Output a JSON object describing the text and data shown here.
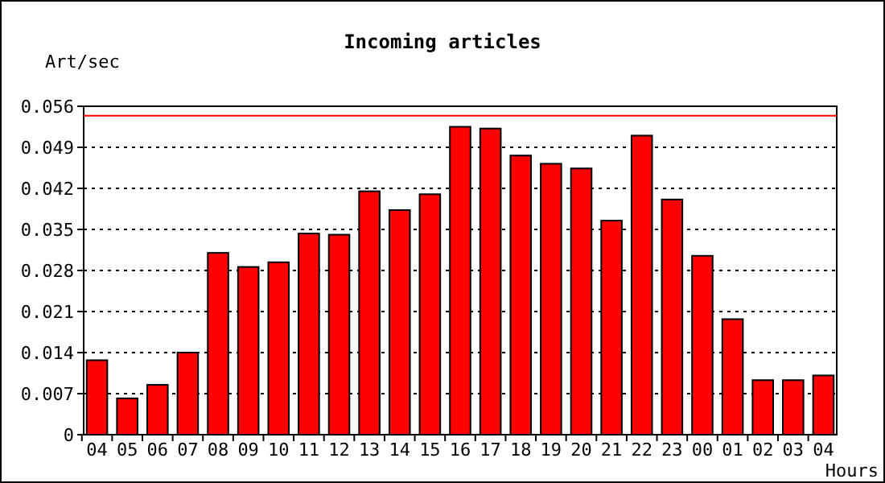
{
  "chart_data": {
    "type": "bar",
    "title": "Incoming articles",
    "ylabel": "Art/sec",
    "xlabel": "Hours",
    "categories": [
      "04",
      "05",
      "06",
      "07",
      "08",
      "09",
      "10",
      "11",
      "12",
      "13",
      "14",
      "15",
      "16",
      "17",
      "18",
      "19",
      "20",
      "21",
      "22",
      "23",
      "00",
      "01",
      "02",
      "03",
      "04"
    ],
    "values": [
      0.0127,
      0.0062,
      0.0085,
      0.014,
      0.031,
      0.0286,
      0.0294,
      0.0343,
      0.0341,
      0.0415,
      0.0383,
      0.041,
      0.0525,
      0.0522,
      0.0476,
      0.0462,
      0.0454,
      0.0365,
      0.051,
      0.0401,
      0.0305,
      0.0197,
      0.0093,
      0.0093,
      0.0101
    ],
    "color": "#ff0000",
    "ylim": [
      0,
      0.056
    ],
    "yticks": [
      {
        "value": 0,
        "label": "0"
      },
      {
        "value": 0.007,
        "label": "0.007"
      },
      {
        "value": 0.014,
        "label": "0.014"
      },
      {
        "value": 0.021,
        "label": "0.021"
      },
      {
        "value": 0.028,
        "label": "0.028"
      },
      {
        "value": 0.035,
        "label": "0.035"
      },
      {
        "value": 0.042,
        "label": "0.042"
      },
      {
        "value": 0.049,
        "label": "0.049"
      },
      {
        "value": 0.056,
        "label": "0.056"
      }
    ],
    "grid": "y",
    "ref_lines": [
      {
        "axis": "y",
        "value": 0.0544,
        "color": "#ff0000"
      }
    ]
  }
}
